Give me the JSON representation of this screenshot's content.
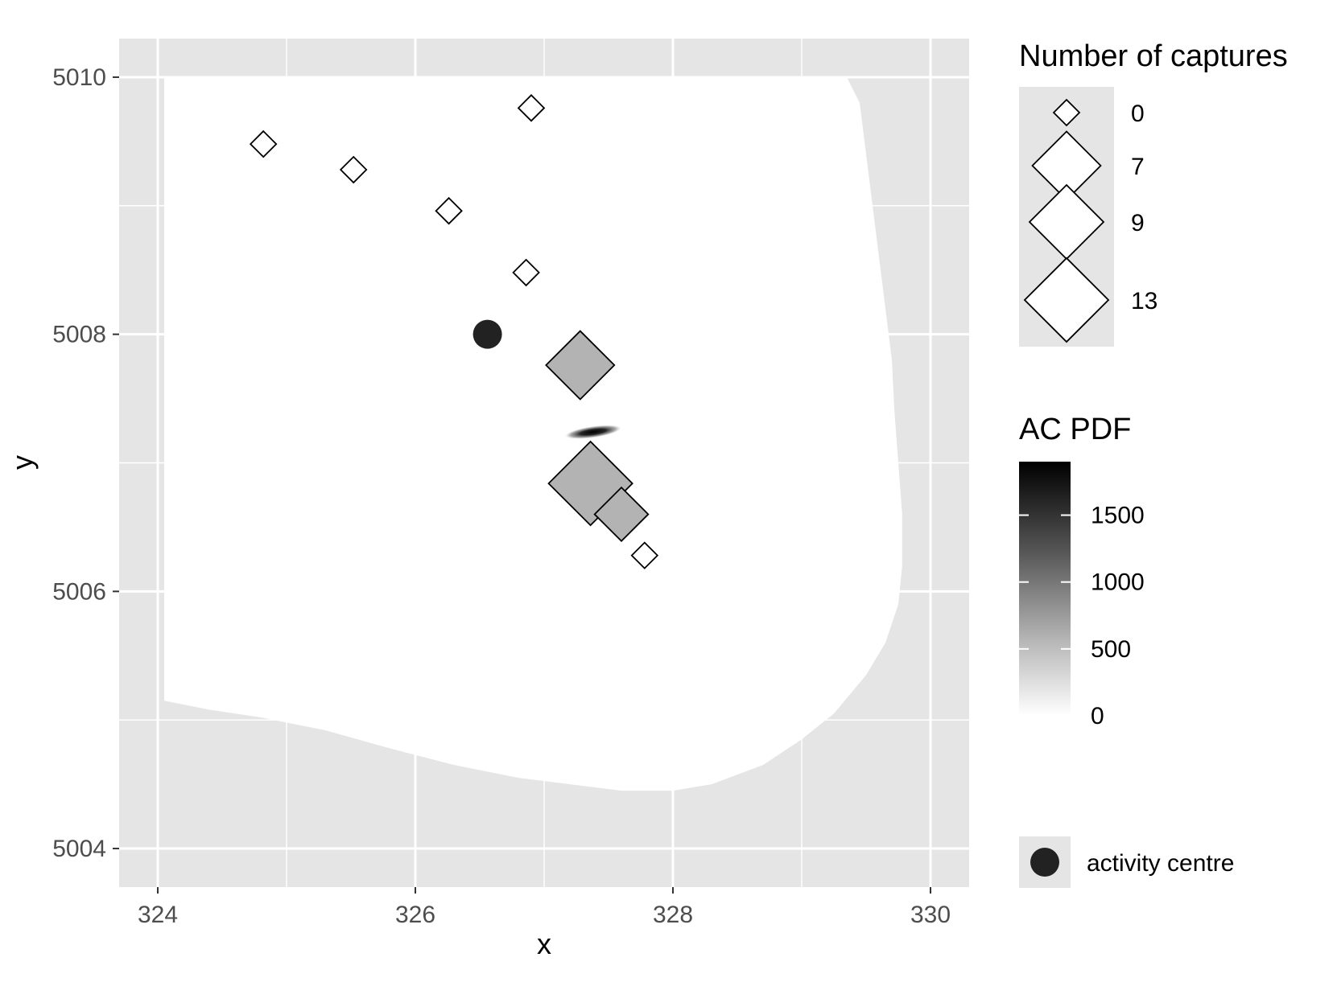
{
  "chart_data": {
    "type": "scatter",
    "xlabel": "x",
    "ylabel": "y",
    "xlim": [
      323.7,
      330.3
    ],
    "ylim": [
      5003.7,
      5010.3
    ],
    "x_ticks": [
      324,
      326,
      328,
      330
    ],
    "y_ticks": [
      5004,
      5006,
      5008,
      5010
    ],
    "x_tick_labels": [
      "324",
      "326",
      "328",
      "330"
    ],
    "y_tick_labels": [
      "5004",
      "5006",
      "5008",
      "5010"
    ],
    "grid": true,
    "panel_background": "#e5e5e5",
    "habitat_mask_color": "#ffffff",
    "habitat_mask_outline": [
      [
        324.05,
        5010.0
      ],
      [
        329.35,
        5010.0
      ],
      [
        329.45,
        5009.8
      ],
      [
        329.5,
        5009.4
      ],
      [
        329.55,
        5009.0
      ],
      [
        329.6,
        5008.6
      ],
      [
        329.65,
        5008.2
      ],
      [
        329.7,
        5007.8
      ],
      [
        329.72,
        5007.4
      ],
      [
        329.75,
        5007.0
      ],
      [
        329.78,
        5006.6
      ],
      [
        329.78,
        5006.2
      ],
      [
        329.75,
        5005.9
      ],
      [
        329.65,
        5005.6
      ],
      [
        329.5,
        5005.35
      ],
      [
        329.25,
        5005.05
      ],
      [
        329.0,
        5004.85
      ],
      [
        328.7,
        5004.65
      ],
      [
        328.3,
        5004.5
      ],
      [
        328.0,
        5004.45
      ],
      [
        327.6,
        5004.45
      ],
      [
        327.2,
        5004.5
      ],
      [
        326.8,
        5004.55
      ],
      [
        326.3,
        5004.65
      ],
      [
        325.8,
        5004.78
      ],
      [
        325.3,
        5004.92
      ],
      [
        324.8,
        5005.02
      ],
      [
        324.4,
        5005.08
      ],
      [
        324.05,
        5005.15
      ]
    ],
    "detectors": [
      {
        "x": 324.82,
        "y": 5009.48,
        "captures": 0
      },
      {
        "x": 325.52,
        "y": 5009.28,
        "captures": 0
      },
      {
        "x": 326.26,
        "y": 5008.96,
        "captures": 0
      },
      {
        "x": 326.9,
        "y": 5009.76,
        "captures": 0
      },
      {
        "x": 326.86,
        "y": 5008.48,
        "captures": 0
      },
      {
        "x": 327.28,
        "y": 5007.76,
        "captures": 7
      },
      {
        "x": 327.36,
        "y": 5006.84,
        "captures": 13
      },
      {
        "x": 327.6,
        "y": 5006.6,
        "captures": 3
      },
      {
        "x": 327.78,
        "y": 5006.28,
        "captures": 0
      }
    ],
    "activity_centre": {
      "x": 326.56,
      "y": 5008.0
    },
    "ac_pdf_hotspot": {
      "x": 327.38,
      "y": 5007.24,
      "sx": 0.22,
      "sy": 0.045,
      "rotation_deg": -8,
      "max": 1900
    },
    "legends": {
      "size_title": "Number of captures",
      "size_entries": [
        {
          "label": "0",
          "captures": 0
        },
        {
          "label": "7",
          "captures": 7
        },
        {
          "label": "9",
          "captures": 9
        },
        {
          "label": "13",
          "captures": 13
        }
      ],
      "fill_title": "AC PDF",
      "fill_range": [
        0,
        1900
      ],
      "fill_ticks": [
        0,
        500,
        1000,
        1500
      ],
      "fill_tick_labels": [
        "0",
        "500",
        "1000",
        "1500"
      ],
      "fill_colors": [
        "#ffffff",
        "#000000"
      ],
      "point_label": "activity centre"
    }
  }
}
